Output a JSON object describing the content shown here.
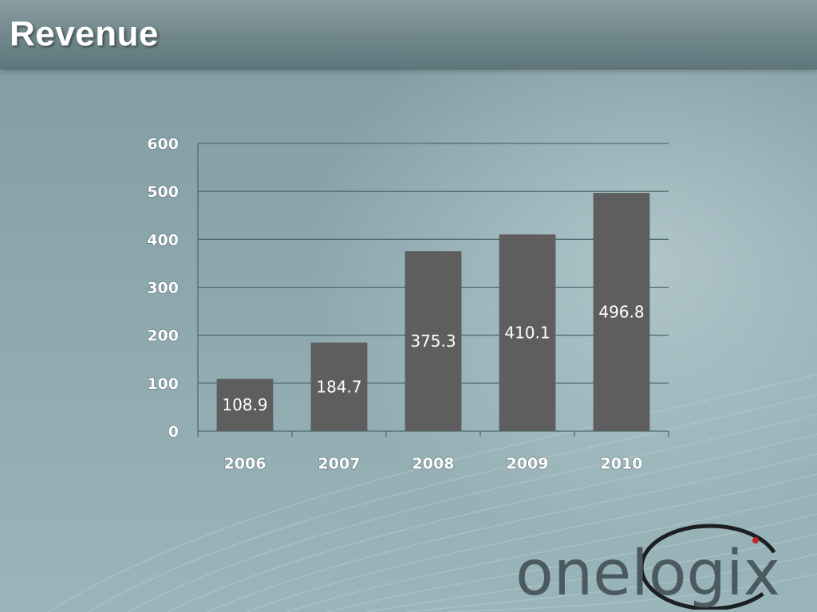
{
  "slide": {
    "title": "Revenue"
  },
  "colors": {
    "bar": "#5e5e5e",
    "grid": "#4f6a70",
    "accent_red": "#c0272d"
  },
  "logo": {
    "text": "onelogix"
  },
  "chart_data": {
    "type": "bar",
    "categories": [
      "2006",
      "2007",
      "2008",
      "2009",
      "2010"
    ],
    "values": [
      108.9,
      184.7,
      375.3,
      410.1,
      496.8
    ],
    "data_labels": [
      "108.9",
      "184.7",
      "375.3",
      "410.1",
      "496.8"
    ],
    "title": "",
    "xlabel": "",
    "ylabel": "",
    "ylim": [
      0,
      600
    ],
    "yticks": [
      0,
      100,
      200,
      300,
      400,
      500,
      600
    ],
    "grid": true,
    "legend": "none"
  }
}
